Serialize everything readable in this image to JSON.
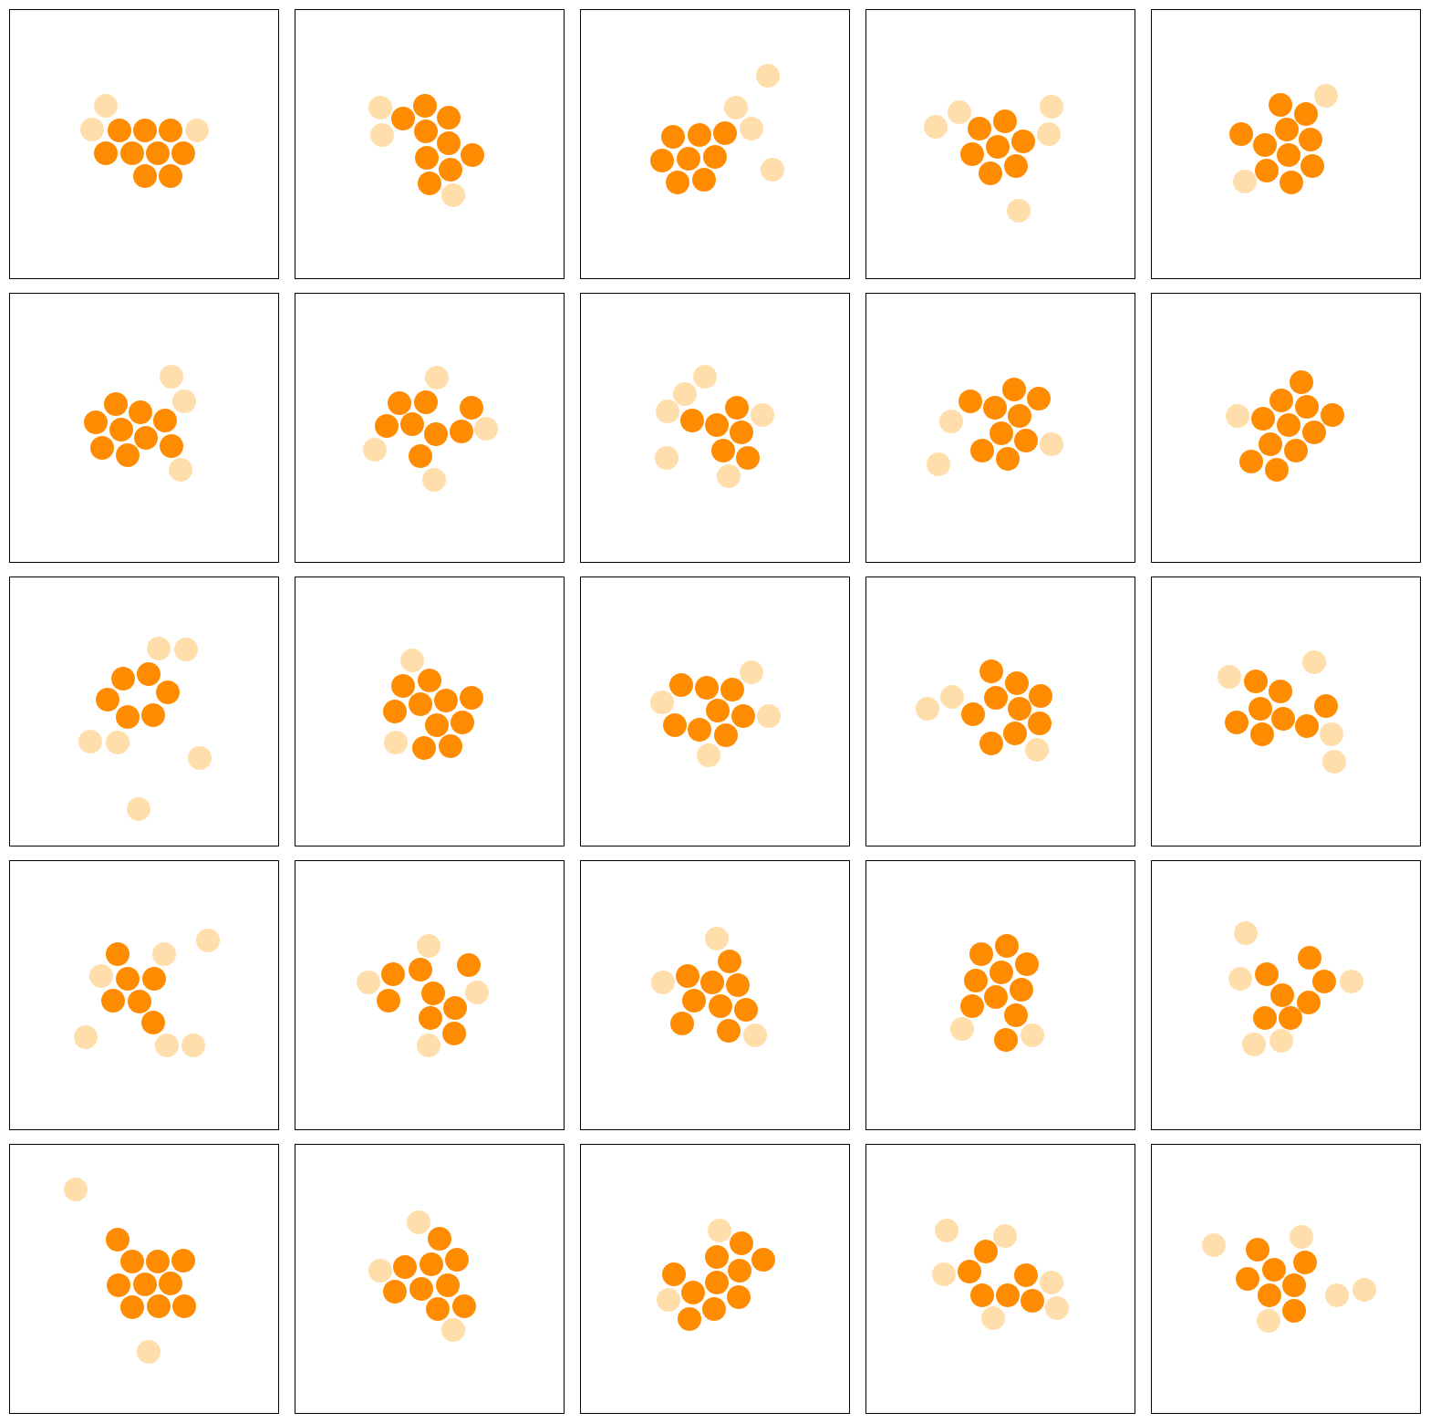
{
  "colors": {
    "core_particle": "#ff8c00",
    "halo_particle": "#ffdeab",
    "panel_border": "#000000",
    "background": "#ffffff"
  },
  "grid": {
    "rows": 5,
    "cols": 5
  },
  "panels": [
    {
      "core": [
        [
          131,
          143
        ],
        [
          159,
          143
        ],
        [
          187,
          143
        ],
        [
          116,
          168
        ],
        [
          145,
          168
        ],
        [
          173,
          168
        ],
        [
          201,
          168
        ],
        [
          159,
          193
        ],
        [
          187,
          193
        ]
      ],
      "halo": [
        [
          116,
          116
        ],
        [
          101,
          142
        ],
        [
          216,
          143
        ]
      ]
    },
    {
      "core": [
        [
          466,
          116
        ],
        [
          442,
          130
        ],
        [
          492,
          129
        ],
        [
          467,
          144
        ],
        [
          492,
          157
        ],
        [
          468,
          173
        ],
        [
          518,
          170
        ],
        [
          494,
          186
        ],
        [
          471,
          201
        ]
      ],
      "halo": [
        [
          417,
          118
        ],
        [
          419,
          148
        ],
        [
          497,
          214
        ]
      ]
    },
    {
      "core": [
        [
          738,
          150
        ],
        [
          767,
          148
        ],
        [
          795,
          146
        ],
        [
          726,
          176
        ],
        [
          755,
          174
        ],
        [
          784,
          172
        ],
        [
          743,
          200
        ],
        [
          772,
          197
        ]
      ],
      "halo": [
        [
          842,
          83
        ],
        [
          807,
          118
        ],
        [
          824,
          141
        ],
        [
          847,
          186
        ]
      ]
    },
    {
      "core": [
        [
          1102,
          133
        ],
        [
          1074,
          141
        ],
        [
          1122,
          155
        ],
        [
          1094,
          161
        ],
        [
          1066,
          169
        ],
        [
          1114,
          182
        ],
        [
          1086,
          190
        ]
      ],
      "halo": [
        [
          1052,
          123
        ],
        [
          1026,
          139
        ],
        [
          1153,
          117
        ],
        [
          1150,
          147
        ],
        [
          1117,
          231
        ]
      ]
    },
    {
      "core": [
        [
          1404,
          115
        ],
        [
          1432,
          125
        ],
        [
          1411,
          142
        ],
        [
          1361,
          147
        ],
        [
          1437,
          153
        ],
        [
          1387,
          159
        ],
        [
          1413,
          170
        ],
        [
          1439,
          182
        ],
        [
          1389,
          187
        ],
        [
          1416,
          200
        ]
      ],
      "halo": [
        [
          1454,
          105
        ],
        [
          1365,
          199
        ]
      ]
    },
    {
      "core": [
        [
          127,
          443
        ],
        [
          154,
          452
        ],
        [
          105,
          463
        ],
        [
          181,
          461
        ],
        [
          133,
          471
        ],
        [
          160,
          480
        ],
        [
          112,
          491
        ],
        [
          188,
          489
        ],
        [
          140,
          499
        ]
      ],
      "halo": [
        [
          188,
          413
        ],
        [
          202,
          440
        ],
        [
          198,
          515
        ]
      ]
    },
    {
      "core": [
        [
          438,
          442
        ],
        [
          467,
          441
        ],
        [
          517,
          447
        ],
        [
          424,
          467
        ],
        [
          452,
          465
        ],
        [
          478,
          476
        ],
        [
          506,
          473
        ],
        [
          461,
          500
        ]
      ],
      "halo": [
        [
          479,
          414
        ],
        [
          411,
          493
        ],
        [
          533,
          470
        ],
        [
          476,
          526
        ]
      ]
    },
    {
      "core": [
        [
          808,
          447
        ],
        [
          759,
          461
        ],
        [
          786,
          466
        ],
        [
          813,
          474
        ],
        [
          793,
          494
        ],
        [
          820,
          502
        ]
      ],
      "halo": [
        [
          773,
          413
        ],
        [
          751,
          432
        ],
        [
          732,
          451
        ],
        [
          836,
          455
        ],
        [
          731,
          502
        ],
        [
          799,
          522
        ]
      ]
    },
    {
      "core": [
        [
          1112,
          427
        ],
        [
          1139,
          437
        ],
        [
          1064,
          440
        ],
        [
          1091,
          447
        ],
        [
          1118,
          456
        ],
        [
          1098,
          475
        ],
        [
          1125,
          483
        ],
        [
          1077,
          494
        ],
        [
          1105,
          503
        ]
      ],
      "halo": [
        [
          1043,
          462
        ],
        [
          1153,
          487
        ],
        [
          1029,
          509
        ]
      ]
    },
    {
      "core": [
        [
          1427,
          419
        ],
        [
          1405,
          439
        ],
        [
          1433,
          446
        ],
        [
          1461,
          455
        ],
        [
          1385,
          459
        ],
        [
          1413,
          466
        ],
        [
          1441,
          474
        ],
        [
          1393,
          487
        ],
        [
          1421,
          494
        ],
        [
          1372,
          506
        ],
        [
          1400,
          515
        ]
      ],
      "halo": [
        [
          1357,
          456
        ]
      ]
    },
    {
      "core": [
        [
          163,
          739
        ],
        [
          135,
          744
        ],
        [
          184,
          759
        ],
        [
          118,
          767
        ],
        [
          168,
          784
        ],
        [
          140,
          786
        ]
      ],
      "halo": [
        [
          174,
          711
        ],
        [
          204,
          712
        ],
        [
          99,
          813
        ],
        [
          129,
          814
        ],
        [
          219,
          831
        ],
        [
          152,
          887
        ]
      ]
    },
    {
      "core": [
        [
          442,
          752
        ],
        [
          471,
          746
        ],
        [
          433,
          780
        ],
        [
          461,
          772
        ],
        [
          489,
          768
        ],
        [
          517,
          765
        ],
        [
          479,
          795
        ],
        [
          507,
          792
        ],
        [
          465,
          820
        ],
        [
          494,
          818
        ]
      ],
      "halo": [
        [
          452,
          724
        ],
        [
          434,
          814
        ]
      ]
    },
    {
      "core": [
        [
          747,
          751
        ],
        [
          775,
          754
        ],
        [
          803,
          756
        ],
        [
          787,
          779
        ],
        [
          815,
          785
        ],
        [
          740,
          795
        ],
        [
          767,
          800
        ],
        [
          796,
          806
        ]
      ],
      "halo": [
        [
          824,
          737
        ],
        [
          726,
          770
        ],
        [
          843,
          785
        ],
        [
          777,
          828
        ]
      ]
    },
    {
      "core": [
        [
          1087,
          736
        ],
        [
          1115,
          749
        ],
        [
          1141,
          763
        ],
        [
          1092,
          765
        ],
        [
          1118,
          777
        ],
        [
          1067,
          783
        ],
        [
          1140,
          793
        ],
        [
          1113,
          804
        ],
        [
          1087,
          815
        ]
      ],
      "halo": [
        [
          1044,
          764
        ],
        [
          1017,
          777
        ],
        [
          1137,
          822
        ]
      ]
    },
    {
      "core": [
        [
          1377,
          747
        ],
        [
          1404,
          758
        ],
        [
          1382,
          777
        ],
        [
          1454,
          774
        ],
        [
          1356,
          792
        ],
        [
          1407,
          788
        ],
        [
          1433,
          796
        ],
        [
          1384,
          805
        ]
      ],
      "halo": [
        [
          1348,
          742
        ],
        [
          1441,
          726
        ],
        [
          1460,
          805
        ],
        [
          1463,
          835
        ]
      ]
    },
    {
      "core": [
        [
          129,
          1046
        ],
        [
          140,
          1073
        ],
        [
          169,
          1073
        ],
        [
          124,
          1097
        ],
        [
          153,
          1098
        ],
        [
          168,
          1121
        ]
      ],
      "halo": [
        [
          180,
          1046
        ],
        [
          228,
          1031
        ],
        [
          111,
          1070
        ],
        [
          94,
          1137
        ],
        [
          183,
          1146
        ],
        [
          212,
          1146
        ]
      ]
    },
    {
      "core": [
        [
          431,
          1068
        ],
        [
          461,
          1063
        ],
        [
          514,
          1058
        ],
        [
          475,
          1089
        ],
        [
          426,
          1097
        ],
        [
          499,
          1105
        ],
        [
          472,
          1116
        ],
        [
          498,
          1133
        ]
      ],
      "halo": [
        [
          470,
          1037
        ],
        [
          404,
          1077
        ],
        [
          523,
          1088
        ],
        [
          470,
          1146
        ]
      ]
    },
    {
      "core": [
        [
          800,
          1054
        ],
        [
          754,
          1070
        ],
        [
          781,
          1077
        ],
        [
          809,
          1080
        ],
        [
          761,
          1097
        ],
        [
          790,
          1103
        ],
        [
          818,
          1107
        ],
        [
          748,
          1122
        ],
        [
          799,
          1130
        ]
      ],
      "halo": [
        [
          786,
          1029
        ],
        [
          727,
          1077
        ],
        [
          828,
          1135
        ]
      ]
    },
    {
      "core": [
        [
          1104,
          1037
        ],
        [
          1076,
          1046
        ],
        [
          1126,
          1057
        ],
        [
          1098,
          1066
        ],
        [
          1070,
          1075
        ],
        [
          1120,
          1085
        ],
        [
          1092,
          1093
        ],
        [
          1066,
          1103
        ],
        [
          1114,
          1113
        ],
        [
          1103,
          1140
        ]
      ],
      "halo": [
        [
          1055,
          1128
        ],
        [
          1132,
          1135
        ]
      ]
    },
    {
      "core": [
        [
          1436,
          1050
        ],
        [
          1389,
          1068
        ],
        [
          1452,
          1076
        ],
        [
          1406,
          1091
        ],
        [
          1435,
          1099
        ],
        [
          1387,
          1116
        ],
        [
          1415,
          1116
        ]
      ],
      "halo": [
        [
          1366,
          1023
        ],
        [
          1360,
          1073
        ],
        [
          1482,
          1076
        ],
        [
          1375,
          1145
        ],
        [
          1405,
          1141
        ]
      ]
    },
    {
      "core": [
        [
          129,
          1359
        ],
        [
          145,
          1383
        ],
        [
          173,
          1383
        ],
        [
          201,
          1382
        ],
        [
          130,
          1409
        ],
        [
          159,
          1408
        ],
        [
          187,
          1407
        ],
        [
          145,
          1433
        ],
        [
          174,
          1432
        ],
        [
          202,
          1432
        ]
      ],
      "halo": [
        [
          83,
          1304
        ],
        [
          163,
          1482
        ]
      ]
    },
    {
      "core": [
        [
          482,
          1358
        ],
        [
          444,
          1389
        ],
        [
          473,
          1386
        ],
        [
          501,
          1381
        ],
        [
          433,
          1416
        ],
        [
          462,
          1413
        ],
        [
          491,
          1409
        ],
        [
          480,
          1435
        ],
        [
          509,
          1432
        ]
      ],
      "halo": [
        [
          459,
          1340
        ],
        [
          417,
          1393
        ],
        [
          497,
          1458
        ]
      ]
    },
    {
      "core": [
        [
          813,
          1363
        ],
        [
          786,
          1378
        ],
        [
          837,
          1381
        ],
        [
          811,
          1393
        ],
        [
          739,
          1397
        ],
        [
          786,
          1406
        ],
        [
          810,
          1422
        ],
        [
          760,
          1417
        ],
        [
          783,
          1435
        ],
        [
          756,
          1446
        ]
      ],
      "halo": [
        [
          789,
          1349
        ],
        [
          733,
          1425
        ]
      ]
    },
    {
      "core": [
        [
          1081,
          1372
        ],
        [
          1063,
          1394
        ],
        [
          1125,
          1398
        ],
        [
          1077,
          1420
        ],
        [
          1105,
          1420
        ],
        [
          1132,
          1426
        ]
      ],
      "halo": [
        [
          1038,
          1349
        ],
        [
          1102,
          1355
        ],
        [
          1035,
          1397
        ],
        [
          1153,
          1406
        ],
        [
          1159,
          1434
        ],
        [
          1089,
          1445
        ]
      ]
    },
    {
      "core": [
        [
          1379,
          1370
        ],
        [
          1431,
          1384
        ],
        [
          1397,
          1392
        ],
        [
          1368,
          1402
        ],
        [
          1419,
          1409
        ],
        [
          1392,
          1420
        ],
        [
          1419,
          1437
        ]
      ],
      "halo": [
        [
          1331,
          1365
        ],
        [
          1427,
          1356
        ],
        [
          1466,
          1420
        ],
        [
          1496,
          1414
        ],
        [
          1391,
          1448
        ]
      ]
    }
  ]
}
